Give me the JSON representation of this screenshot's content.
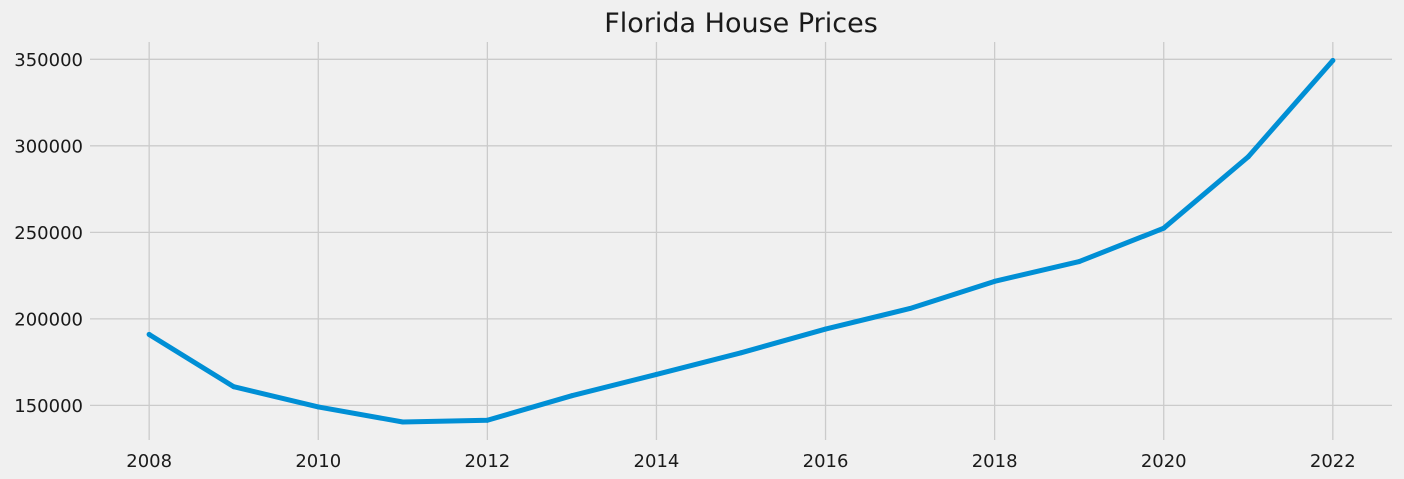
{
  "chart_data": {
    "type": "line",
    "title": "Florida House Prices",
    "xlabel": "",
    "ylabel": "",
    "x": [
      2008,
      2009,
      2010,
      2011,
      2012,
      2013,
      2014,
      2015,
      2016,
      2017,
      2018,
      2019,
      2020,
      2021,
      2022
    ],
    "series": [
      {
        "values": [
          191000,
          160800,
          149100,
          140400,
          141400,
          155600,
          167900,
          180400,
          194100,
          206000,
          221700,
          233100,
          252400,
          293700,
          349300
        ],
        "color": "#008fd5"
      }
    ],
    "xlim": [
      2007.3,
      2022.7
    ],
    "ylim": [
      130000,
      360000
    ],
    "xticks": [
      2008,
      2010,
      2012,
      2014,
      2016,
      2018,
      2020,
      2022
    ],
    "yticks": [
      150000,
      200000,
      250000,
      300000,
      350000
    ],
    "grid": true,
    "legend": "none",
    "background_color": "#f0f0f0",
    "grid_color": "#cbcbcb"
  }
}
